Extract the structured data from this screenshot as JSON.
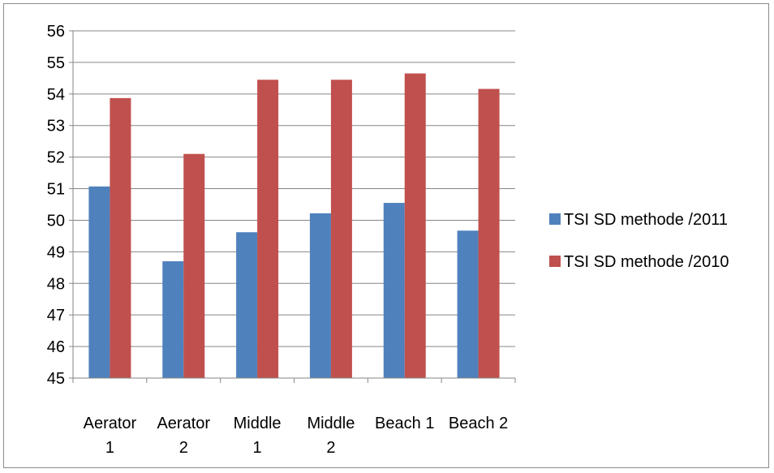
{
  "chart_data": {
    "type": "bar",
    "categories": [
      [
        "Aerator",
        "1"
      ],
      [
        "Aerator",
        "2"
      ],
      [
        "Middle",
        "1"
      ],
      [
        "Middle",
        "2"
      ],
      [
        "Beach 1"
      ],
      [
        "Beach 2"
      ]
    ],
    "series": [
      {
        "name": "TSI SD methode /2011",
        "color": "#4F81BD",
        "values": [
          51.07,
          48.7,
          49.62,
          50.22,
          50.55,
          49.67
        ]
      },
      {
        "name": "TSI SD methode /2010",
        "color": "#C0504D",
        "values": [
          53.87,
          52.1,
          54.45,
          54.45,
          54.65,
          54.16
        ]
      }
    ],
    "ylim": [
      45,
      56
    ],
    "yticks": [
      45,
      46,
      47,
      48,
      49,
      50,
      51,
      52,
      53,
      54,
      55,
      56
    ],
    "grid": true,
    "legend": "right",
    "title": "",
    "xlabel": "",
    "ylabel": ""
  }
}
